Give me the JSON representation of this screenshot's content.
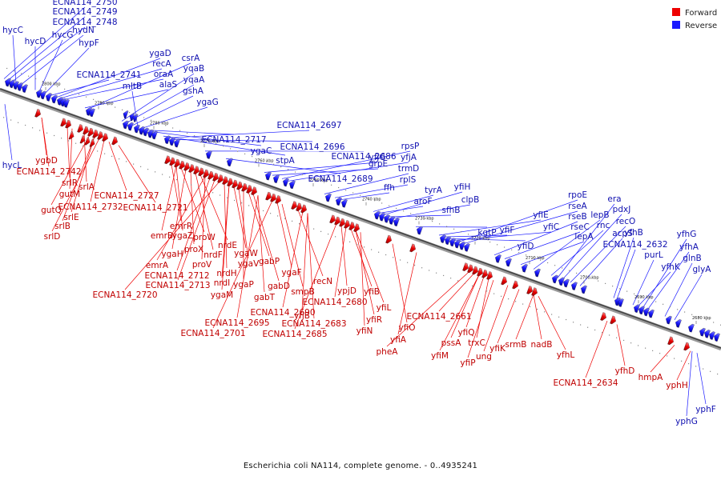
{
  "caption": "Escherichia coli NA114, complete genome. - 0..4935241",
  "legend": [
    {
      "label": "Forward",
      "color": "#ee0000"
    },
    {
      "label": "Reverse",
      "color": "#1a1aff"
    }
  ],
  "kbp_ticks": [
    "2800 kbp",
    "2790 kbp",
    "2780 kbp",
    "2770 kbp",
    "2760 kbp",
    "2750 kbp",
    "2740 kbp",
    "2730 kbp",
    "2720 kbp",
    "2710 kbp",
    "2700 kbp",
    "2690 kbp",
    "2680 kbp"
  ],
  "reverse_labels_top": [
    "ECNA114_2750",
    "ECNA114_2749",
    "ECNA114_2748",
    "hycC",
    "hydN",
    "hycD",
    "hycG",
    "hypF",
    "ECNA114_2741",
    "ygaD",
    "recA",
    "oraA",
    "alaS",
    "csrA",
    "yqaB",
    "yqaA",
    "gshA",
    "mltB",
    "ygaG",
    "ECNA114_2717",
    "ygaC",
    "stpA",
    "ECNA114_2697",
    "ECNA114_2696",
    "ECNA114_2686",
    "ECNA114_2689",
    "yfjG",
    "grpE",
    "rpsP",
    "yfjA",
    "trmD",
    "rplS",
    "ffh",
    "tyrA",
    "aroF",
    "yfiH",
    "sfhB",
    "clpB",
    "kgtP",
    "yfiE",
    "yfiF",
    "yfiD",
    "yfiC",
    "rpoE",
    "rseA",
    "rseB",
    "rseC",
    "lepA",
    "lepB",
    "rnc",
    "era",
    "pdxJ",
    "recO",
    "acpS",
    "yfhB",
    "ECNA114_2632",
    "purL",
    "yfhK",
    "yfhG",
    "yfhA",
    "glnB",
    "glyA"
  ],
  "reverse_labels_bottom": [
    "hycL",
    "yphF",
    "yphG"
  ],
  "forward_labels": [
    "ygbD",
    "ECNA114_2742",
    "srlR",
    "gutM",
    "srlA",
    "gutQ",
    "srlE",
    "srlB",
    "srlD",
    "ECNA114_2732",
    "ECNA114_2727",
    "ECNA114_2721",
    "emrR",
    "emrB",
    "ygaZ",
    "proW",
    "ygaH",
    "proX",
    "nrdF",
    "nrdE",
    "emrA",
    "proV",
    "ECNA114_2712",
    "ECNA114_2713",
    "ECNA114_2720",
    "nrdH",
    "nrdI",
    "ygaM",
    "ygaW",
    "ygaV",
    "ygaP",
    "gabP",
    "gabD",
    "gabT",
    "ECNA114_2695",
    "ECNA114_2701",
    "ygaF",
    "smpB",
    "recN",
    "ECNA114_2690",
    "yfjB",
    "ECNA114_2683",
    "ECNA114_2685",
    "ypjD",
    "ECNA114_2680",
    "yfiB",
    "yfiL",
    "yfiR",
    "yfiN",
    "yfiO",
    "yfiA",
    "pheA",
    "ECNA114_2661",
    "pssA",
    "yfiM",
    "yfiQ",
    "trxC",
    "yfiP",
    "ung",
    "yfiK",
    "srmB",
    "nadB",
    "yfhL",
    "ECNA114_2634",
    "yfhD",
    "hmpA",
    "yphH"
  ]
}
